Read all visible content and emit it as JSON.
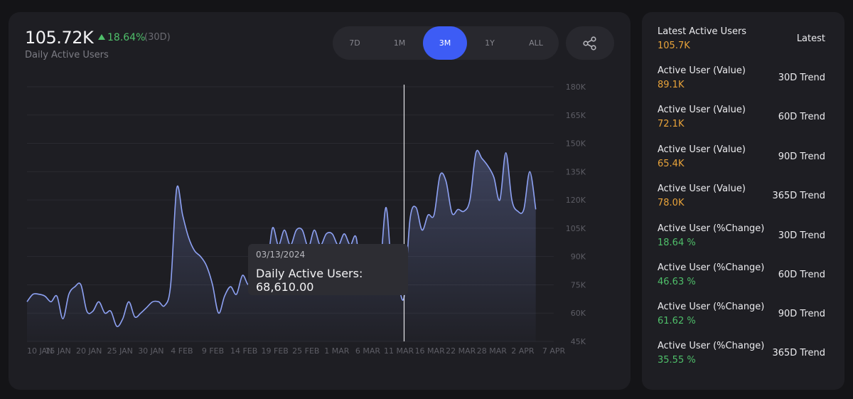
{
  "header": {
    "value": "105.72K",
    "change": "18.64%",
    "period": "(30D)",
    "subtitle": "Daily Active Users"
  },
  "range_tabs": [
    {
      "label": "7D",
      "active": false
    },
    {
      "label": "1M",
      "active": false
    },
    {
      "label": "3M",
      "active": true
    },
    {
      "label": "1Y",
      "active": false
    },
    {
      "label": "ALL",
      "active": false
    }
  ],
  "share_icon": "share-icon",
  "tooltip": {
    "date": "03/13/2024",
    "text": "Daily Active Users: 68,610.00"
  },
  "colors": {
    "line": "#8ea2f4",
    "accent": "#3d5cf5",
    "positive": "#4fbf6a",
    "value_orange": "#e8a33a"
  },
  "chart_data": {
    "type": "area",
    "x_tick_labels": [
      "10 JAN",
      "15 JAN",
      "20 JAN",
      "25 JAN",
      "30 JAN",
      "4 FEB",
      "9 FEB",
      "14 FEB",
      "19 FEB",
      "25 FEB",
      "1 MAR",
      "6 MAR",
      "11 MAR",
      "16 MAR",
      "22 MAR",
      "28 MAR",
      "2 APR",
      "7 APR"
    ],
    "y_tick_labels": [
      "180K",
      "165K",
      "150K",
      "135K",
      "120K",
      "105K",
      "90K",
      "75K",
      "60K",
      "45K"
    ],
    "ylim": [
      45000,
      180000
    ],
    "xlim": [
      "2024-01-10",
      "2024-04-07"
    ],
    "grid": true,
    "hover_date": "2024-03-13",
    "series": [
      {
        "values": [
          [
            "2024-01-10",
            66000
          ],
          [
            "2024-01-11",
            70000
          ],
          [
            "2024-01-12",
            70000
          ],
          [
            "2024-01-13",
            69000
          ],
          [
            "2024-01-14",
            66000
          ],
          [
            "2024-01-15",
            69000
          ],
          [
            "2024-01-16",
            57000
          ],
          [
            "2024-01-17",
            70000
          ],
          [
            "2024-01-18",
            74000
          ],
          [
            "2024-01-19",
            75000
          ],
          [
            "2024-01-20",
            61000
          ],
          [
            "2024-01-21",
            61000
          ],
          [
            "2024-01-22",
            66000
          ],
          [
            "2024-01-23",
            60000
          ],
          [
            "2024-01-24",
            61000
          ],
          [
            "2024-01-25",
            53000
          ],
          [
            "2024-01-26",
            57000
          ],
          [
            "2024-01-27",
            66000
          ],
          [
            "2024-01-28",
            58000
          ],
          [
            "2024-01-29",
            60000
          ],
          [
            "2024-01-30",
            63000
          ],
          [
            "2024-01-31",
            66000
          ],
          [
            "2024-02-01",
            66000
          ],
          [
            "2024-02-02",
            64000
          ],
          [
            "2024-02-03",
            75000
          ],
          [
            "2024-02-04",
            126000
          ],
          [
            "2024-02-05",
            112000
          ],
          [
            "2024-02-06",
            100000
          ],
          [
            "2024-02-07",
            93000
          ],
          [
            "2024-02-08",
            90000
          ],
          [
            "2024-02-09",
            85000
          ],
          [
            "2024-02-10",
            75000
          ],
          [
            "2024-02-11",
            60000
          ],
          [
            "2024-02-12",
            69000
          ],
          [
            "2024-02-13",
            74000
          ],
          [
            "2024-02-14",
            70000
          ],
          [
            "2024-02-15",
            80000
          ],
          [
            "2024-02-16",
            75000
          ],
          [
            "2024-02-17",
            80000
          ],
          [
            "2024-02-18",
            75000
          ],
          [
            "2024-02-19",
            80000
          ],
          [
            "2024-02-20",
            105000
          ],
          [
            "2024-02-21",
            96000
          ],
          [
            "2024-02-22",
            104000
          ],
          [
            "2024-02-23",
            96000
          ],
          [
            "2024-02-24",
            104000
          ],
          [
            "2024-02-25",
            104000
          ],
          [
            "2024-02-26",
            95000
          ],
          [
            "2024-02-27",
            104000
          ],
          [
            "2024-02-28",
            96000
          ],
          [
            "2024-02-29",
            102000
          ],
          [
            "2024-03-01",
            102000
          ],
          [
            "2024-03-02",
            96000
          ],
          [
            "2024-03-03",
            102000
          ],
          [
            "2024-03-04",
            96000
          ],
          [
            "2024-03-05",
            100000
          ],
          [
            "2024-03-06",
            74000
          ],
          [
            "2024-03-07",
            80000
          ],
          [
            "2024-03-08",
            85000
          ],
          [
            "2024-03-09",
            85000
          ],
          [
            "2024-03-10",
            116000
          ],
          [
            "2024-03-11",
            80000
          ],
          [
            "2024-03-12",
            75000
          ],
          [
            "2024-03-13",
            68610
          ],
          [
            "2024-03-14",
            110000
          ],
          [
            "2024-03-15",
            116000
          ],
          [
            "2024-03-16",
            104000
          ],
          [
            "2024-03-17",
            112000
          ],
          [
            "2024-03-18",
            112000
          ],
          [
            "2024-03-19",
            133000
          ],
          [
            "2024-03-20",
            130000
          ],
          [
            "2024-03-21",
            113000
          ],
          [
            "2024-03-22",
            115000
          ],
          [
            "2024-03-23",
            114000
          ],
          [
            "2024-03-24",
            120000
          ],
          [
            "2024-03-25",
            145000
          ],
          [
            "2024-03-26",
            142000
          ],
          [
            "2024-03-27",
            138000
          ],
          [
            "2024-03-28",
            132000
          ],
          [
            "2024-03-29",
            120000
          ],
          [
            "2024-03-30",
            145000
          ],
          [
            "2024-03-31",
            120000
          ],
          [
            "2024-04-01",
            114000
          ],
          [
            "2024-04-02",
            115000
          ],
          [
            "2024-04-03",
            135000
          ],
          [
            "2024-04-04",
            115000
          ]
        ]
      }
    ]
  },
  "stats": [
    {
      "label": "Latest Active Users",
      "value": "105.7K",
      "value_color": "#e8a33a",
      "right": "Latest"
    },
    {
      "label": "Active User (Value)",
      "value": "89.1K",
      "value_color": "#e8a33a",
      "right": "30D Trend"
    },
    {
      "label": "Active User (Value)",
      "value": "72.1K",
      "value_color": "#e8a33a",
      "right": "60D Trend"
    },
    {
      "label": "Active User (Value)",
      "value": "65.4K",
      "value_color": "#e8a33a",
      "right": "90D Trend"
    },
    {
      "label": "Active User (Value)",
      "value": "78.0K",
      "value_color": "#e8a33a",
      "right": "365D Trend"
    },
    {
      "label": "Active User (%Change)",
      "value": "18.64 %",
      "value_color": "#4fbf6a",
      "right": "30D Trend"
    },
    {
      "label": "Active User (%Change)",
      "value": "46.63 %",
      "value_color": "#4fbf6a",
      "right": "60D Trend"
    },
    {
      "label": "Active User (%Change)",
      "value": "61.62 %",
      "value_color": "#4fbf6a",
      "right": "90D Trend"
    },
    {
      "label": "Active User (%Change)",
      "value": "35.55 %",
      "value_color": "#4fbf6a",
      "right": "365D Trend"
    }
  ]
}
